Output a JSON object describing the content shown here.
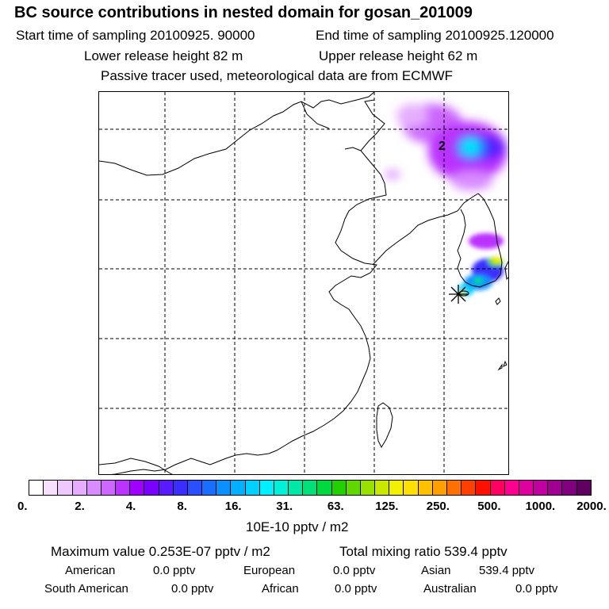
{
  "header": {
    "title": "BC  source contributions in nested domain for gosan_201009",
    "start_time": "Start time of sampling 20100925. 90000",
    "end_time": "End time of sampling 20100925.120000",
    "lower_height": "Lower release height   82 m",
    "upper_height": "Upper release height   62 m",
    "note": "Passive tracer used, meteorological data are from ECMWF"
  },
  "map": {
    "contour_label": "2",
    "receptor_marker": "gosan-star"
  },
  "colorbar": {
    "colors": [
      "#ffffff",
      "#f7e0ff",
      "#efc8ff",
      "#e6adff",
      "#d98cff",
      "#cc66ff",
      "#bb33ff",
      "#a000ff",
      "#7a00ff",
      "#5a1aff",
      "#3a2eff",
      "#2a4fff",
      "#1a6eff",
      "#0a90ff",
      "#00b0ff",
      "#00d0ff",
      "#00f0ff",
      "#00f0d8",
      "#00e8a8",
      "#00e078",
      "#00d840",
      "#20d000",
      "#60d800",
      "#98e000",
      "#c8e800",
      "#f0f000",
      "#ffe000",
      "#ffc000",
      "#ffa000",
      "#ff7000",
      "#ff4000",
      "#ff1000",
      "#ff0060",
      "#ff0090",
      "#e000a0",
      "#c000a0",
      "#a00090",
      "#800080",
      "#600060"
    ],
    "labels": [
      "0.",
      "2.",
      "4.",
      "8.",
      "16.",
      "31.",
      "63.",
      "125.",
      "250.",
      "500.",
      "1000.",
      "2000."
    ],
    "unit": "10E-10 pptv / m2"
  },
  "stats": {
    "maximum": "Maximum value  0.253E-07 pptv / m2",
    "total": "Total mixing ratio      539.4 pptv",
    "american_label": "American",
    "american_value": "0.0 pptv",
    "european_label": "European",
    "european_value": "0.0 pptv",
    "asian_label": "Asian",
    "asian_value": "539.4 pptv",
    "south_american_label": "South American",
    "south_american_value": "0.0 pptv",
    "african_label": "African",
    "african_value": "0.0 pptv",
    "australian_label": "Australian",
    "australian_value": "0.0 pptv"
  }
}
